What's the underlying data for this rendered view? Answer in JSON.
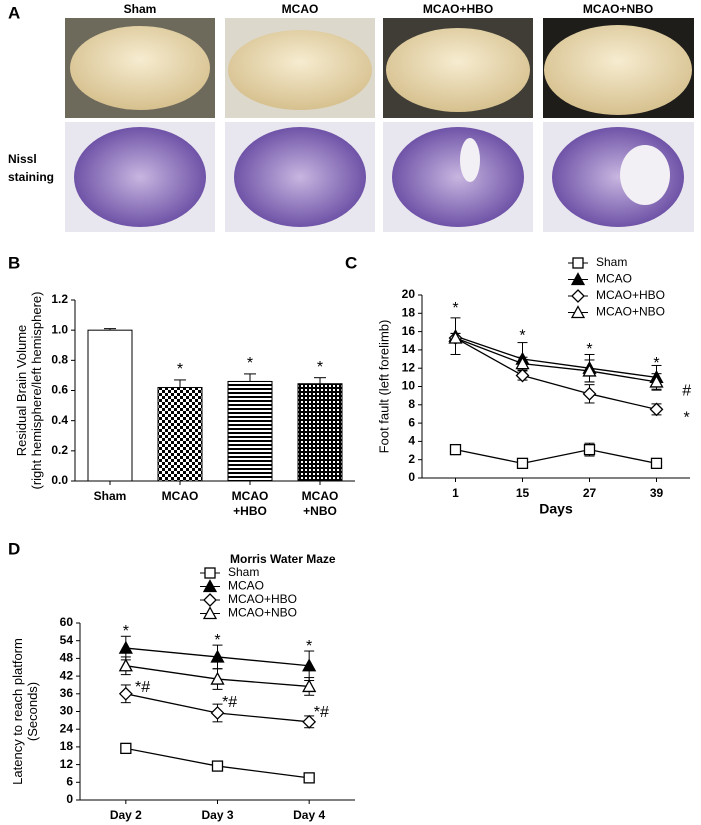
{
  "panel_a": {
    "label": "A",
    "columns": [
      "Sham",
      "MCAO",
      "MCAO+HBO",
      "MCAO+NBO"
    ],
    "row_label": [
      "Nissl",
      "staining"
    ]
  },
  "chart_data": [
    {
      "panel": "B",
      "type": "bar",
      "y_label": [
        "Residual Brain Volume",
        "(right hemisphere/left hemisphere)"
      ],
      "categories": [
        [
          "Sham"
        ],
        [
          "MCAO"
        ],
        [
          "MCAO",
          "+HBO"
        ],
        [
          "MCAO",
          "+NBO"
        ]
      ],
      "values": [
        1.0,
        0.62,
        0.66,
        0.645
      ],
      "errors": [
        0.01,
        0.05,
        0.05,
        0.04
      ],
      "patterns": [
        "solid",
        "checker",
        "stripes",
        "grid"
      ],
      "color": "#000000",
      "significance": [
        null,
        "*",
        "*",
        "*"
      ],
      "ylim": [
        0,
        1.2
      ],
      "yticks": [
        {
          "value": 0,
          "label": "0.0"
        },
        {
          "value": 0.2,
          "label": "0.2"
        },
        {
          "value": 0.4,
          "label": "0.4"
        },
        {
          "value": 0.6,
          "label": "0.6"
        },
        {
          "value": 0.8,
          "label": "0.8"
        },
        {
          "value": 1,
          "label": "1.0"
        },
        {
          "value": 1.2,
          "label": "1.2"
        }
      ]
    },
    {
      "panel": "C",
      "type": "line",
      "y_label": [
        "Foot fault (left forelimb)"
      ],
      "x_label": "Days",
      "categories": [
        [
          "1"
        ],
        [
          "15"
        ],
        [
          "27"
        ],
        [
          "39"
        ]
      ],
      "series": [
        {
          "name": "Sham",
          "marker": "square",
          "marker_fill": "#ffffff",
          "color": "#000000",
          "values": [
            3.1,
            1.6,
            3.1,
            1.6
          ],
          "errors": [
            0.4,
            0.3,
            0.7,
            0.4
          ]
        },
        {
          "name": "MCAO",
          "marker": "triangle",
          "marker_fill": "#000000",
          "color": "#000000",
          "values": [
            15.5,
            13,
            12,
            11
          ],
          "errors": [
            2,
            1.8,
            1.5,
            1.3
          ]
        },
        {
          "name": "MCAO+HBO",
          "marker": "diamond",
          "marker_fill": "#ffffff",
          "color": "#000000",
          "values": [
            15.3,
            11.2,
            9.2,
            7.5
          ],
          "errors": [
            0.5,
            0.5,
            1,
            0.6
          ]
        },
        {
          "name": "MCAO+NBO",
          "marker": "triangle",
          "marker_fill": "#ffffff",
          "color": "#000000",
          "values": [
            15.3,
            12.5,
            11.7,
            10.5
          ],
          "errors": [
            0.5,
            0.7,
            1.2,
            0.9
          ]
        }
      ],
      "annotations": [
        {
          "at": 0,
          "y": 18.5,
          "text": "*"
        },
        {
          "at": 1,
          "y": 15.5,
          "text": "*"
        },
        {
          "at": 2,
          "y": 14,
          "text": "*"
        },
        {
          "at": 3,
          "y": 12.5,
          "text": "*"
        },
        {
          "at": 3.45,
          "y": 9.5,
          "text": "#"
        },
        {
          "at": 3.45,
          "y": 6.5,
          "text": "*"
        }
      ],
      "ylim": [
        0,
        20
      ],
      "yticks": [
        0,
        2,
        4,
        6,
        8,
        10,
        12,
        14,
        16,
        18,
        20
      ]
    },
    {
      "panel": "D",
      "type": "line",
      "title": "Morris Water Maze",
      "y_label": [
        "Latency to reach platform",
        "(Seconds)"
      ],
      "categories": [
        [
          "Day 2"
        ],
        [
          "Day 3"
        ],
        [
          "Day 4"
        ]
      ],
      "series": [
        {
          "name": "Sham",
          "marker": "square",
          "marker_fill": "#ffffff",
          "color": "#000000",
          "values": [
            17.5,
            11.5,
            7.5
          ],
          "errors": [
            1.5,
            1,
            0.8
          ]
        },
        {
          "name": "MCAO",
          "marker": "triangle",
          "marker_fill": "#000000",
          "color": "#000000",
          "values": [
            51.5,
            48.5,
            45.5
          ],
          "errors": [
            4,
            4,
            5
          ]
        },
        {
          "name": "MCAO+HBO",
          "marker": "diamond",
          "marker_fill": "#ffffff",
          "color": "#000000",
          "values": [
            36,
            29.5,
            26.5
          ],
          "errors": [
            3,
            3,
            2
          ]
        },
        {
          "name": "MCAO+NBO",
          "marker": "triangle",
          "marker_fill": "#ffffff",
          "color": "#000000",
          "values": [
            45.5,
            41,
            38.5
          ],
          "errors": [
            3,
            3.5,
            3
          ]
        }
      ],
      "annotations": [
        {
          "at": 0,
          "y": 57,
          "text": "*"
        },
        {
          "at": 1,
          "y": 54,
          "text": "*"
        },
        {
          "at": 2,
          "y": 52,
          "text": "*"
        },
        {
          "at": 0.1,
          "y": 38,
          "text": "*#"
        },
        {
          "at": 1.05,
          "y": 33,
          "text": "*#"
        },
        {
          "at": 2.05,
          "y": 29.5,
          "text": "*#"
        }
      ],
      "ylim": [
        0,
        60
      ],
      "yticks": [
        0,
        6,
        12,
        18,
        24,
        30,
        36,
        42,
        48,
        54,
        60
      ]
    }
  ]
}
